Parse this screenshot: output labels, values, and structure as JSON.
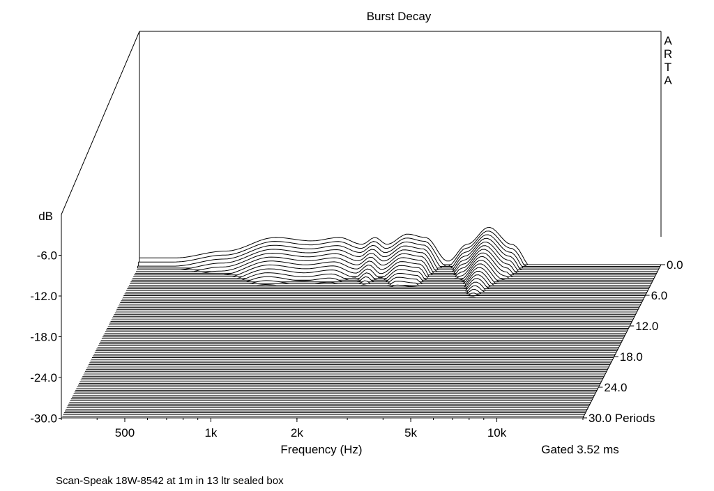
{
  "chart_data": {
    "type": "waterfall",
    "title": "Burst Decay",
    "brand": "ARTA",
    "xlabel": "Frequency (Hz)",
    "ylabel": "dB",
    "zlabel_unit": "Periods",
    "xscale": "log",
    "xlim": [
      300,
      20000
    ],
    "x_ticks": [
      {
        "value": 500,
        "label": "500"
      },
      {
        "value": 1000,
        "label": "1k"
      },
      {
        "value": 2000,
        "label": "2k"
      },
      {
        "value": 5000,
        "label": "5k"
      },
      {
        "value": 10000,
        "label": "10k"
      }
    ],
    "y_ticks": [
      {
        "value": -6.0,
        "label": "-6.0"
      },
      {
        "value": -12.0,
        "label": "-12.0"
      },
      {
        "value": -18.0,
        "label": "-18.0"
      },
      {
        "value": -24.0,
        "label": "-24.0"
      },
      {
        "value": -30.0,
        "label": "-30.0"
      }
    ],
    "ylim": [
      -30,
      6
    ],
    "z_ticks": [
      {
        "value": 0.0,
        "label": "0.0"
      },
      {
        "value": 6.0,
        "label": "6.0"
      },
      {
        "value": 12.0,
        "label": "12.0"
      },
      {
        "value": 18.0,
        "label": "18.0"
      },
      {
        "value": 24.0,
        "label": "24.0"
      },
      {
        "value": 30.0,
        "label": "30.0 Periods"
      }
    ],
    "zlim": [
      0,
      30
    ],
    "gating": "Gated 3.52 ms",
    "caption": "Scan-Speak 18W-8542 at 1m in 13 ltr sealed box",
    "grid": false,
    "slice_count": 90,
    "response_shape": {
      "freq": [
        400,
        600,
        900,
        1200,
        1500,
        1800,
        2000,
        2200,
        2600,
        3000,
        3600,
        4200,
        5000,
        6000,
        7500,
        9000,
        10500,
        12500,
        14500,
        16500,
        18500,
        20000
      ],
      "level_db": [
        1.0,
        2.0,
        4.0,
        3.5,
        4.0,
        3.0,
        4.0,
        3.0,
        4.5,
        4.0,
        0.5,
        3.0,
        5.5,
        3.0,
        -2.0,
        -4.0,
        -2.0,
        -5.0,
        -7.0,
        -5.0,
        -7.0,
        -5.5
      ],
      "decay_db_per_period": [
        0.35,
        0.33,
        0.32,
        0.33,
        0.34,
        0.35,
        0.32,
        0.36,
        0.32,
        0.3,
        0.5,
        0.33,
        0.28,
        0.32,
        0.6,
        0.36,
        0.4,
        0.55,
        0.45,
        0.5,
        0.45,
        0.45
      ]
    }
  }
}
